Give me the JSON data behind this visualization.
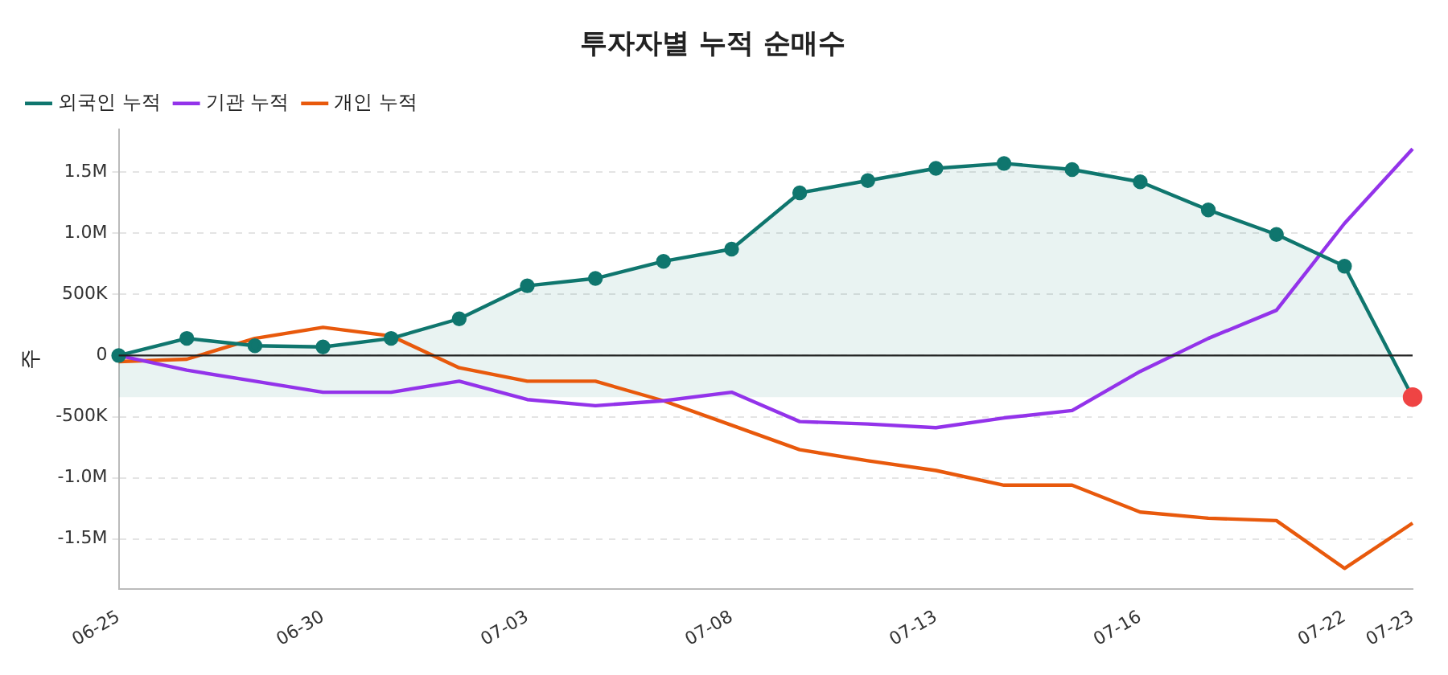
{
  "chart_data": {
    "type": "line",
    "title": "투자자별 누적 순매수",
    "ylabel": "주",
    "categories": [
      "06-25",
      null,
      null,
      "06-30",
      null,
      null,
      "07-03",
      null,
      null,
      "07-08",
      null,
      null,
      "07-13",
      null,
      null,
      "07-16",
      null,
      null,
      "07-22",
      "07-23"
    ],
    "series": [
      {
        "name": "외국인 누적",
        "color": "#0f766e",
        "marker": "circle",
        "lower": [
          -340000,
          -340000,
          -340000,
          -340000,
          -340000,
          -340000,
          -340000,
          -340000,
          -340000,
          -340000,
          -340000,
          -340000,
          -340000,
          -340000,
          -340000,
          -340000,
          -340000,
          -340000,
          -340000,
          -340000
        ],
        "upper": [
          0,
          140000,
          80000,
          70000,
          140000,
          300000,
          570000,
          630000,
          770000,
          870000,
          1330000,
          1430000,
          1530000,
          1570000,
          1520000,
          1420000,
          1190000,
          990000,
          730000,
          -340000
        ],
        "colors": [
          "#0f766e",
          "#0f766e",
          "#0f766e",
          "#0f766e",
          "#0f766e",
          "#0f766e",
          "#0f766e",
          "#0f766e",
          "#0f766e",
          "#0f766e",
          "#0f766e",
          "#0f766e",
          "#0f766e",
          "#0f766e",
          "#0f766e",
          "#0f766e",
          "#0f766e",
          "#0f766e",
          "#0f766e",
          "#ef4444"
        ],
        "values": [
          0,
          140000,
          80000,
          70000,
          140000,
          300000,
          570000,
          630000,
          770000,
          870000,
          1330000,
          1430000,
          1530000,
          1570000,
          1520000,
          1420000,
          1190000,
          990000,
          730000,
          -340000
        ]
      },
      {
        "name": "기관 누적",
        "color": "#9333ea",
        "marker": "none",
        "values": [
          0,
          -120000,
          -210000,
          -300000,
          -300000,
          -210000,
          -360000,
          -410000,
          -370000,
          -300000,
          -540000,
          -560000,
          -590000,
          -510000,
          -450000,
          -130000,
          140000,
          370000,
          1080000,
          1690000
        ]
      },
      {
        "name": "개인 누적",
        "color": "#e8590c",
        "marker": "none",
        "values": [
          -50000,
          -30000,
          140000,
          230000,
          160000,
          -100000,
          -210000,
          -210000,
          -370000,
          -570000,
          -770000,
          -860000,
          -940000,
          -1060000,
          -1060000,
          -1280000,
          -1330000,
          -1350000,
          -1740000,
          -1370000
        ]
      }
    ],
    "ylim": [
      -1910000,
      1850000
    ],
    "yticks": [
      {
        "value": -1500000,
        "label": "-1.5M"
      },
      {
        "value": -1000000,
        "label": "-1.0M"
      },
      {
        "value": -500000,
        "label": "-500K"
      },
      0,
      {
        "value": 500000,
        "label": "500K"
      },
      {
        "value": 1000000,
        "label": "1.0M"
      },
      {
        "value": 1500000,
        "label": "1.5M"
      }
    ],
    "ref_lines": [
      {
        "axis": "y",
        "value": 0,
        "color": "#222222"
      }
    ],
    "grid": "y",
    "legend": "top left"
  }
}
